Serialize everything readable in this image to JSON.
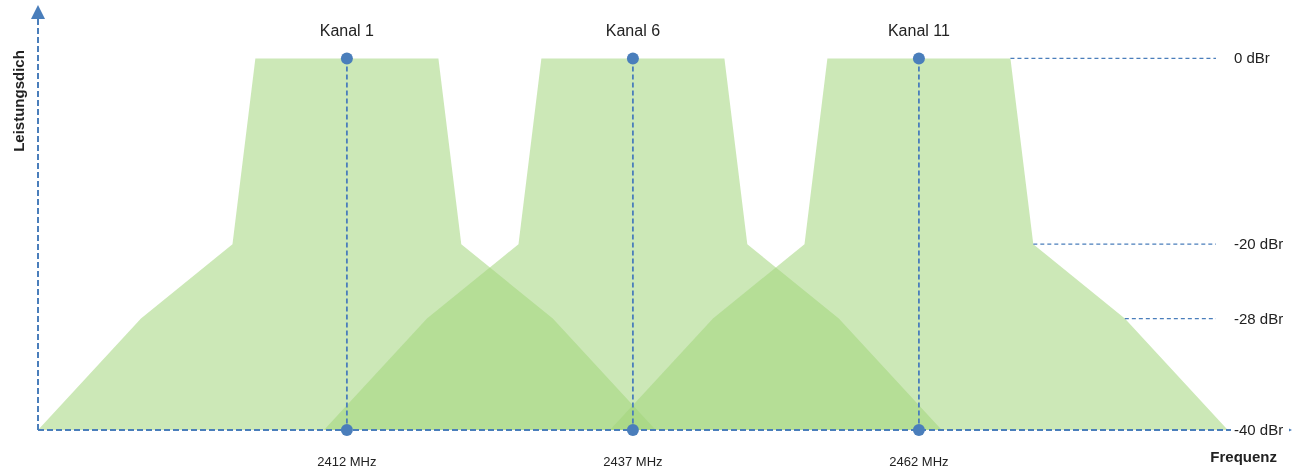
{
  "chart_data": {
    "type": "area",
    "xlabel": "Frequenz",
    "ylabel": "Leistungsdich",
    "xlim": [
      2385,
      2494
    ],
    "ylim": [
      -40,
      5
    ],
    "xticks": [
      {
        "value": 2412,
        "label": "2412 MHz"
      },
      {
        "value": 2437,
        "label": "2437 MHz"
      },
      {
        "value": 2462,
        "label": "2462 MHz"
      }
    ],
    "yticks": [
      {
        "value": 0,
        "label": "0 dBr"
      },
      {
        "value": -20,
        "label": "-20 dBr"
      },
      {
        "value": -28,
        "label": "-28 dBr"
      },
      {
        "value": -40,
        "label": "-40 dBr"
      }
    ],
    "series": [
      {
        "color": "#a3d57c",
        "x": [
          2385,
          2394,
          2402,
          2404,
          2420,
          2422,
          2430,
          2439
        ],
        "values": [
          -40,
          -28,
          -20,
          0,
          0,
          -20,
          -28,
          -40
        ]
      },
      {
        "color": "#a3d57c",
        "x": [
          2410,
          2419,
          2427,
          2429,
          2445,
          2447,
          2455,
          2464
        ],
        "values": [
          -40,
          -28,
          -20,
          0,
          0,
          -20,
          -28,
          -40
        ]
      },
      {
        "color": "#a3d57c",
        "x": [
          2435,
          2444,
          2452,
          2454,
          2470,
          2472,
          2480,
          2489
        ],
        "values": [
          -40,
          -28,
          -20,
          0,
          0,
          -20,
          -28,
          -40
        ]
      },
      {
        "type": "scatter",
        "marker": "circle",
        "color": "#4a7ebb",
        "x": [
          2412,
          2412,
          2437,
          2437,
          2462,
          2462
        ],
        "values": [
          0,
          -40,
          0,
          -40,
          0,
          -40
        ]
      }
    ],
    "ref_lines": [
      {
        "axis": "x",
        "value": 2412,
        "label": "Kanal 1",
        "color": "#4a7ebb",
        "line_style": "dashed"
      },
      {
        "axis": "x",
        "value": 2437,
        "label": "Kanal 6",
        "color": "#4a7ebb",
        "line_style": "dashed"
      },
      {
        "axis": "x",
        "value": 2462,
        "label": "Kanal 11",
        "color": "#4a7ebb",
        "line_style": "dashed"
      }
    ],
    "grid": false
  }
}
